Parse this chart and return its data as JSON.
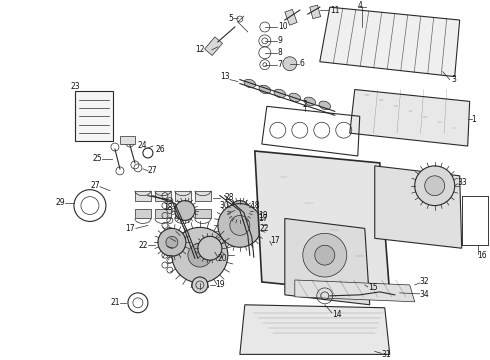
{
  "bg_color": "#ffffff",
  "fig_width": 4.9,
  "fig_height": 3.6,
  "dpi": 100,
  "line_color": "#2a2a2a",
  "label_fontsize": 5.5,
  "label_color": "#111111"
}
